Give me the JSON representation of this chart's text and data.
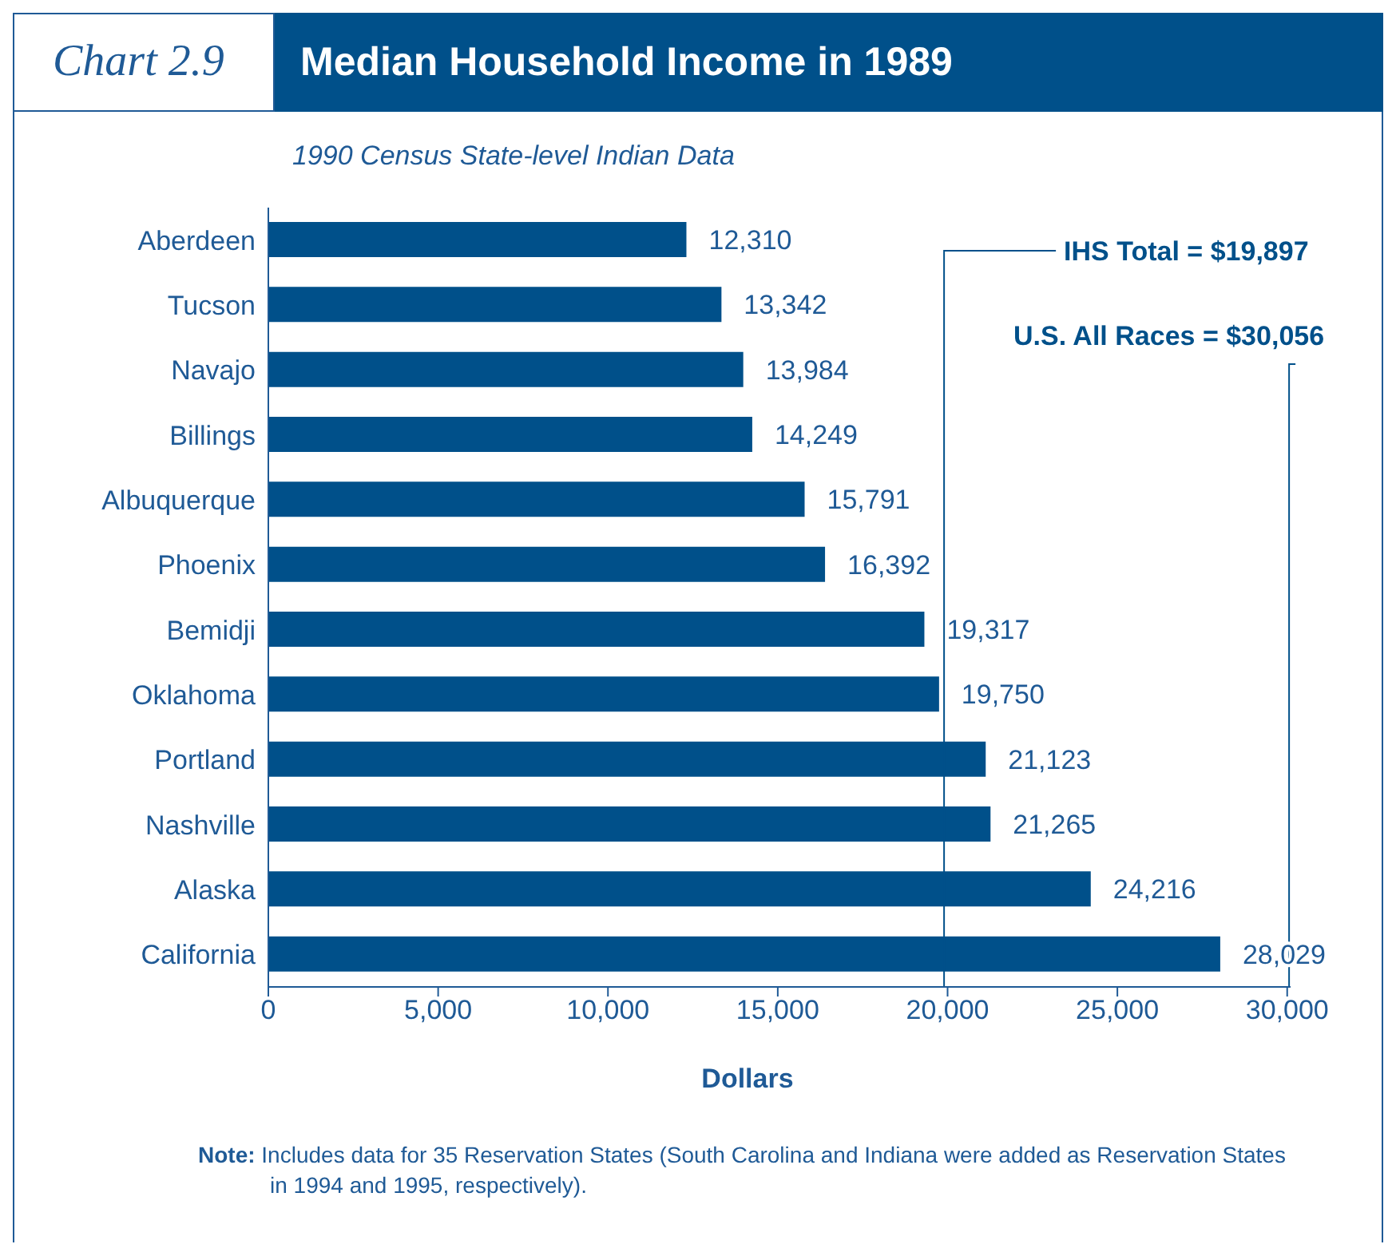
{
  "chart_data": {
    "type": "bar",
    "orientation": "horizontal",
    "title": "Median Household Income in 1989",
    "subtitle": "1990 Census State-level Indian Data",
    "xlabel": "Dollars",
    "annotations": [
      "Chart 2.9",
      "Note: Includes data for 35 Reservation States (South Carolina and Indiana were added as Reservation States in 1994 and 1995, respectively)."
    ],
    "categories": [
      "Aberdeen",
      "Tucson",
      "Navajo",
      "Billings",
      "Albuquerque",
      "Phoenix",
      "Bemidji",
      "Oklahoma",
      "Portland",
      "Nashville",
      "Alaska",
      "California"
    ],
    "values": [
      12310,
      13342,
      13984,
      14249,
      15791,
      16392,
      19317,
      19750,
      21123,
      21265,
      24216,
      28029
    ],
    "value_labels": [
      "12,310",
      "13,342",
      "13,984",
      "14,249",
      "15,791",
      "16,392",
      "19,317",
      "19,750",
      "21,123",
      "21,265",
      "24,216",
      "28,029"
    ],
    "color": "#00508a",
    "xlim": [
      0,
      30100
    ],
    "xticks": [
      0,
      {
        "value": 5000,
        "label": "5,000"
      },
      {
        "value": 10000,
        "label": "10,000"
      },
      {
        "value": 15000,
        "label": "15,000"
      },
      {
        "value": 20000,
        "label": "20,000"
      },
      {
        "value": 25000,
        "label": "25,000"
      },
      {
        "value": 30000,
        "label": "30,000"
      }
    ],
    "ref_lines": [
      {
        "axis": "x",
        "value": 19897,
        "label": "IHS Total = $19,897",
        "color": "#00508a"
      },
      {
        "axis": "x",
        "value": 30056,
        "label": "U.S. All Races = $30,056",
        "color": "#00508a"
      }
    ],
    "grid": false,
    "legend": false
  }
}
